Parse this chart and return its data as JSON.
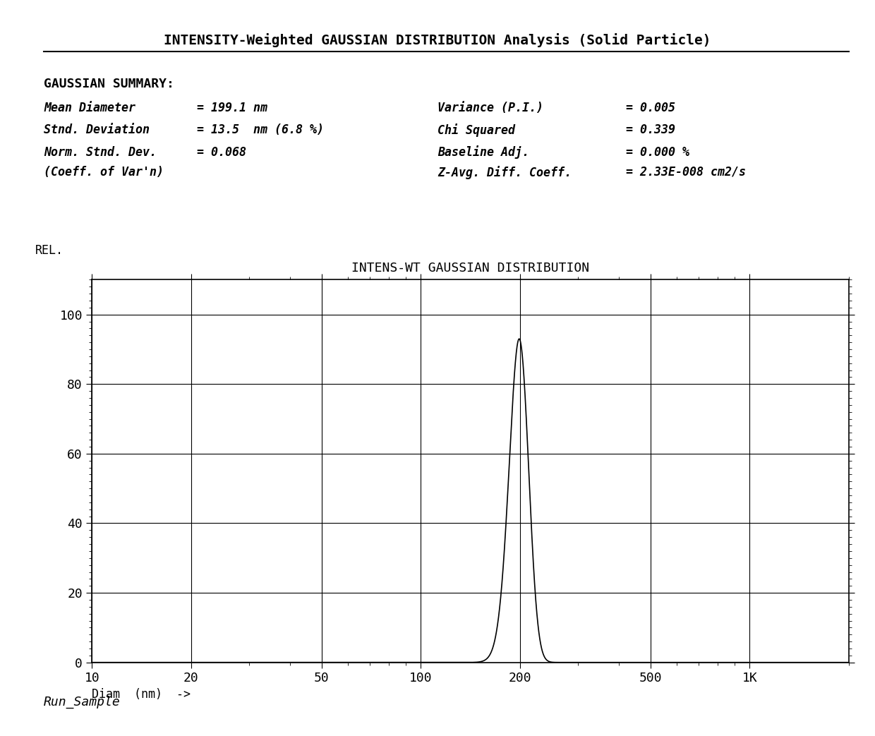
{
  "title": "INTENSITY-Weighted GAUSSIAN DISTRIBUTION Analysis (Solid Particle)",
  "plot_title": "INTENS-WT GAUSSIAN DISTRIBUTION",
  "rel_label": "REL.",
  "xlabel": "Diam  (nm)  ->",
  "summary_header": "GAUSSIAN SUMMARY:",
  "summary_left": [
    [
      "Mean Diameter",
      "= 199.1 nm"
    ],
    [
      "Stnd. Deviation",
      "= 13.5  nm (6.8 %)"
    ],
    [
      "Norm. Stnd. Dev.",
      "= 0.068"
    ],
    [
      "(Coeff. of Var'n)",
      ""
    ]
  ],
  "summary_right": [
    [
      "Variance (P.I.)",
      "= 0.005"
    ],
    [
      "Chi Squared",
      "= 0.339"
    ],
    [
      "Baseline Adj.",
      "= 0.000 %"
    ],
    [
      "Z-Avg. Diff. Coeff.",
      "= 2.33E-008 cm2/s"
    ]
  ],
  "footer": "Run_Sample",
  "mean": 199.1,
  "sigma": 13.5,
  "peak_value": 93,
  "ylim": [
    0,
    110
  ],
  "yticks": [
    0,
    20,
    40,
    60,
    80,
    100
  ],
  "xtick_positions": [
    10,
    20,
    50,
    100,
    200,
    500,
    1000
  ],
  "xtick_labels": [
    "10",
    "20",
    "50",
    "100",
    "200",
    "500",
    "1K"
  ],
  "background_color": "#ffffff",
  "curve_color": "#000000",
  "grid_color": "#000000",
  "font_color": "#000000"
}
